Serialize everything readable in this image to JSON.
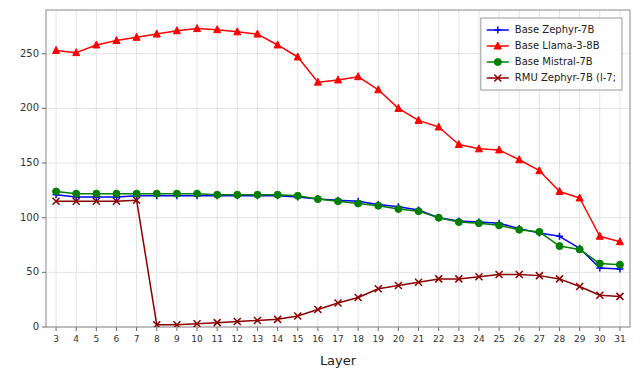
{
  "chart_data": {
    "type": "line",
    "xlabel": "Layer",
    "x": [
      3,
      4,
      5,
      6,
      7,
      8,
      9,
      10,
      11,
      12,
      13,
      14,
      15,
      16,
      17,
      18,
      19,
      20,
      21,
      22,
      23,
      24,
      25,
      26,
      27,
      28,
      29,
      30,
      31
    ],
    "series": [
      {
        "name": "Base Zephyr-7B",
        "color": "#0000ff",
        "marker": "plus",
        "values": [
          121,
          119,
          119,
          119,
          120,
          120,
          120,
          120,
          120,
          120,
          120,
          120,
          119,
          117,
          116,
          115,
          112,
          110,
          107,
          100,
          97,
          96,
          95,
          90,
          86,
          83,
          72,
          54,
          53
        ]
      },
      {
        "name": "Base Llama-3-8B",
        "color": "#ff0000",
        "marker": "triangle",
        "values": [
          253,
          251,
          258,
          262,
          265,
          268,
          271,
          273,
          272,
          270,
          268,
          258,
          247,
          224,
          226,
          229,
          217,
          200,
          189,
          183,
          167,
          163,
          162,
          153,
          143,
          124,
          118,
          83,
          78
        ]
      },
      {
        "name": "Base Mistral-7B",
        "color": "#008000",
        "marker": "circle",
        "values": [
          124,
          122,
          122,
          122,
          122,
          122,
          122,
          122,
          121,
          121,
          121,
          121,
          120,
          117,
          115,
          113,
          111,
          108,
          106,
          100,
          96,
          95,
          93,
          89,
          87,
          74,
          71,
          58,
          57
        ]
      },
      {
        "name": "RMU Zephyr-7B (l-7;",
        "color": "#8b0000",
        "marker": "x",
        "values": [
          115,
          115,
          115,
          115,
          116,
          2,
          2,
          3,
          4,
          5,
          6,
          7,
          10,
          16,
          22,
          27,
          35,
          38,
          41,
          44,
          44,
          46,
          48,
          48,
          47,
          44,
          37,
          29,
          28
        ]
      }
    ],
    "xlim": [
      2.5,
      31.5
    ],
    "xticks": [
      3,
      4,
      5,
      6,
      7,
      8,
      9,
      10,
      11,
      12,
      13,
      14,
      15,
      16,
      17,
      18,
      19,
      20,
      21,
      22,
      23,
      24,
      25,
      26,
      27,
      28,
      29,
      30,
      31
    ],
    "ylim": [
      0,
      290
    ],
    "yticks": [
      0,
      50,
      100,
      150,
      200,
      250
    ],
    "grid": true,
    "legend": "upper right"
  }
}
